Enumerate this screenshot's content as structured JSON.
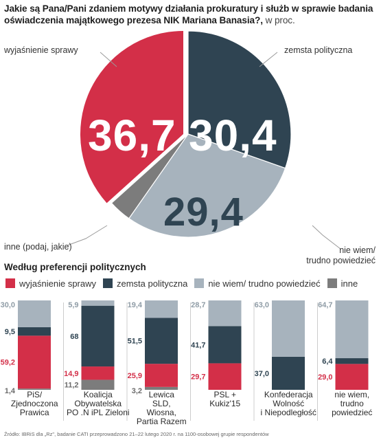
{
  "title": "Jakie są Pana/Pani zdaniem motywy działania prokuratury i służb w sprawie badania oświadczenia majątkowego prezesa NIK Mariana Banasia?,",
  "unit": "w proc.",
  "colors": {
    "wyjasnienie": "#d32f48",
    "zemsta": "#2f4452",
    "niewiem": "#a7b3bd",
    "inne": "#7c7c7c"
  },
  "chart_data": [
    {
      "type": "pie",
      "slices": [
        {
          "label": "wyjaśnienie sprawy",
          "value": 36.7,
          "display": "36,7",
          "color": "#d32f48"
        },
        {
          "label": "zemsta polityczna",
          "value": 30.4,
          "display": "30,4",
          "color": "#2f4452"
        },
        {
          "label": "nie wiem/ trudno powiedzieć",
          "value": 29.4,
          "display": "29,4",
          "color": "#a7b3bd"
        },
        {
          "label": "inne (podaj, jakie)",
          "value": 3.6,
          "display": "3,6",
          "color": "#7c7c7c"
        }
      ],
      "labels": {
        "wyjasnienie": "wyjaśnienie sprawy",
        "zemsta": "zemsta polityczna",
        "niewiem_1": "nie wiem/",
        "niewiem_2": "trudno powiedzieć",
        "inne": "inne (podaj, jakie)"
      }
    },
    {
      "type": "bar",
      "stacked": true,
      "title": "Według preferencji politycznych",
      "legend": [
        "wyjaśnienie sprawy",
        "zemsta polityczna",
        "nie wiem/ trudno powiedzieć",
        "inne"
      ],
      "categories": [
        [
          "PiS/",
          "Zjednoczona",
          "Prawica"
        ],
        [
          "Koalicja",
          "Obywatelska",
          "PO .N iPL Zieloni"
        ],
        [
          "Lewica",
          "SLD,",
          "Wiosna,",
          "Partia Razem"
        ],
        [
          "PSL +",
          "Kukiz'15"
        ],
        [
          "Konfederacja",
          "Wolność",
          "i Niepodległość"
        ],
        [
          "nie wiem,",
          "trudno",
          "powiedzieć"
        ]
      ],
      "series": [
        {
          "name": "wyjaśnienie sprawy",
          "color": "#d32f48",
          "values": [
            59.2,
            14.9,
            25.9,
            29.7,
            0,
            29.0
          ],
          "labels": [
            "59,2",
            "14,9",
            "25,9",
            "29,7",
            "",
            "29,0"
          ]
        },
        {
          "name": "zemsta polityczna",
          "color": "#2f4452",
          "values": [
            9.5,
            68,
            51.5,
            41.7,
            37.0,
            6.4
          ],
          "labels": [
            "9,5",
            "68",
            "51,5",
            "41,7",
            "37,0",
            "6,4"
          ]
        },
        {
          "name": "nie wiem/ trudno powiedzieć",
          "color": "#a7b3bd",
          "values": [
            30.0,
            5.9,
            19.4,
            28.7,
            63.0,
            64.7
          ],
          "labels": [
            "30,0",
            "5,9",
            "19,4",
            "28,7",
            "63,0",
            "64,7"
          ]
        },
        {
          "name": "inne",
          "color": "#7c7c7c",
          "values": [
            1.4,
            11.2,
            3.2,
            0,
            0,
            0
          ],
          "labels": [
            "1,4",
            "11,2",
            "3,2",
            "",
            "",
            ""
          ]
        }
      ]
    }
  ],
  "source": "Źródło: IBRiS dla „Rz\", badanie CATI przeprowadzono 21–22 lutego 2020 r. na 1100-osobowej grupie respondentów"
}
